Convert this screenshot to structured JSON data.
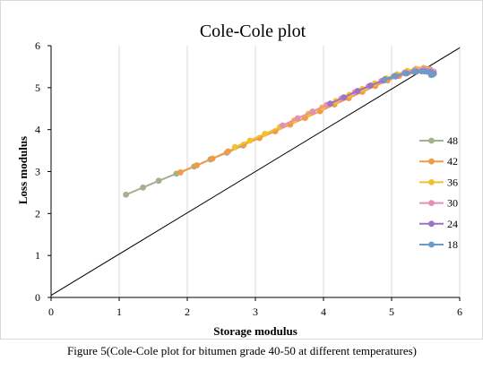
{
  "chart_data": {
    "type": "scatter",
    "title": "Cole-Cole plot",
    "xlabel": "Storage modulus",
    "ylabel": "Loss modulus",
    "xlim": [
      0,
      6
    ],
    "ylim": [
      0,
      6
    ],
    "x_ticks": [
      "0",
      "1",
      "2",
      "3",
      "4",
      "5",
      "6"
    ],
    "y_ticks": [
      "0",
      "1",
      "2",
      "3",
      "4",
      "5",
      "6"
    ],
    "grid": "vertical",
    "legend_position": "right",
    "reference_line": {
      "x": [
        0,
        6
      ],
      "y": [
        0.05,
        5.95
      ],
      "color": "#000000"
    },
    "series": [
      {
        "name": "48",
        "color": "#a3b18f",
        "x": [
          1.1,
          1.35,
          1.58,
          1.84,
          2.1,
          2.34,
          2.58,
          2.82
        ],
        "y": [
          2.45,
          2.62,
          2.78,
          2.95,
          3.12,
          3.29,
          3.45,
          3.62
        ]
      },
      {
        "name": "42",
        "color": "#f39a45",
        "x": [
          1.9,
          2.14,
          2.37,
          2.6,
          2.83,
          3.06,
          3.29,
          3.51,
          3.73,
          3.95,
          4.16,
          4.37,
          4.57,
          4.76,
          4.94,
          5.11,
          5.26,
          5.4,
          5.5
        ],
        "y": [
          2.98,
          3.15,
          3.31,
          3.48,
          3.64,
          3.8,
          3.96,
          4.12,
          4.28,
          4.44,
          4.6,
          4.75,
          4.9,
          5.04,
          5.17,
          5.28,
          5.37,
          5.43,
          5.45
        ]
      },
      {
        "name": "36",
        "color": "#f2c12e",
        "x": [
          2.7,
          2.92,
          3.14,
          3.36,
          3.57,
          3.78,
          3.98,
          4.18,
          4.38,
          4.57,
          4.75,
          4.92,
          5.08,
          5.23,
          5.36,
          5.47,
          5.56
        ],
        "y": [
          3.58,
          3.74,
          3.9,
          4.06,
          4.22,
          4.38,
          4.53,
          4.68,
          4.83,
          4.97,
          5.1,
          5.22,
          5.32,
          5.4,
          5.45,
          5.47,
          5.44
        ]
      },
      {
        "name": "30",
        "color": "#e48fb4",
        "x": [
          3.4,
          3.62,
          3.84,
          4.05,
          4.26,
          4.46,
          4.66,
          4.85,
          5.03,
          5.19,
          5.34,
          5.47,
          5.57,
          5.62
        ],
        "y": [
          4.1,
          4.27,
          4.43,
          4.59,
          4.74,
          4.89,
          5.03,
          5.16,
          5.27,
          5.36,
          5.42,
          5.45,
          5.43,
          5.38
        ]
      },
      {
        "name": "24",
        "color": "#9b74c4",
        "x": [
          4.1,
          4.3,
          4.5,
          4.69,
          4.88,
          5.06,
          5.22,
          5.36,
          5.48,
          5.57,
          5.62
        ],
        "y": [
          4.62,
          4.77,
          4.92,
          5.05,
          5.17,
          5.27,
          5.34,
          5.38,
          5.39,
          5.37,
          5.33
        ]
      },
      {
        "name": "18",
        "color": "#6e9bc5",
        "x": [
          4.9,
          5.05,
          5.2,
          5.33,
          5.44,
          5.52,
          5.57,
          5.6,
          5.61,
          5.6,
          5.58
        ],
        "y": [
          5.2,
          5.28,
          5.34,
          5.38,
          5.39,
          5.38,
          5.36,
          5.34,
          5.32,
          5.31,
          5.3
        ]
      }
    ]
  },
  "caption": "Figure 5(Cole-Cole plot for bitumen grade 40-50 at different temperatures)"
}
